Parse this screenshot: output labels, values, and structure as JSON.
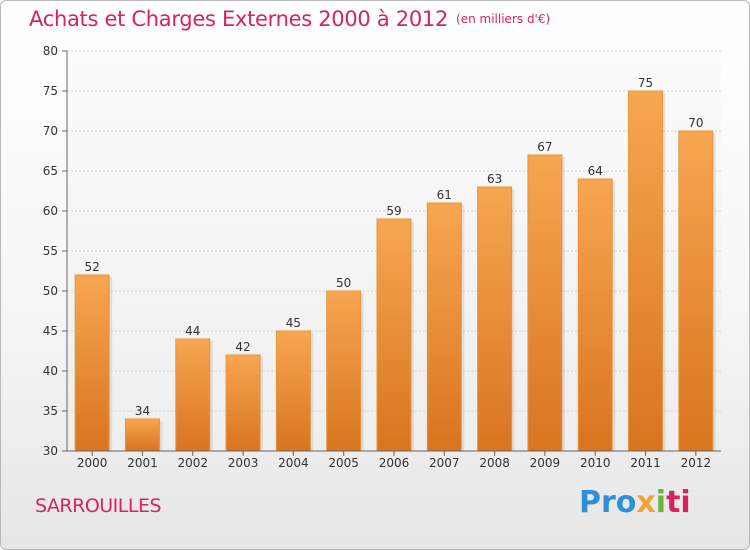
{
  "header": {
    "title": "Achats et Charges Externes 2000 à 2012",
    "unit": "(en milliers d'€)"
  },
  "footer": {
    "town": "SARROUILLES",
    "logo": [
      "Pro",
      "x",
      "i",
      "ti"
    ]
  },
  "colors": {
    "accent": "#d6245f",
    "bar_top": "#f7a650",
    "bar_bottom": "#d9741f"
  },
  "chart_data": {
    "type": "bar",
    "title": "Achats et Charges Externes 2000 à 2012",
    "categories": [
      "2000",
      "2001",
      "2002",
      "2003",
      "2004",
      "2005",
      "2006",
      "2007",
      "2008",
      "2009",
      "2010",
      "2011",
      "2012"
    ],
    "values": [
      52,
      34,
      44,
      42,
      45,
      50,
      59,
      61,
      63,
      67,
      64,
      75,
      70
    ],
    "ylim": [
      30,
      80
    ],
    "yticks": [
      30,
      35,
      40,
      45,
      50,
      55,
      60,
      65,
      70,
      75,
      80
    ],
    "xlabel": "",
    "ylabel": "",
    "grid": "horizontal"
  }
}
